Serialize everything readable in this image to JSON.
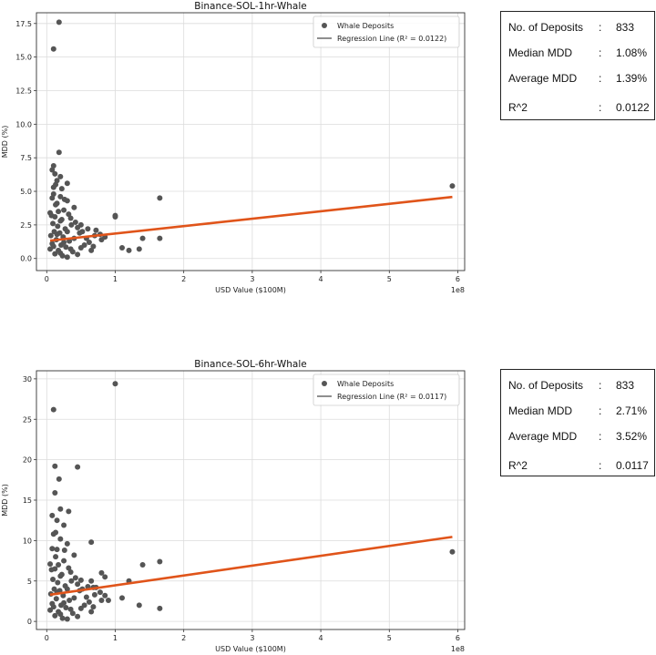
{
  "chart_data": [
    {
      "type": "scatter",
      "title": "Binance-SOL-1hr-Whale",
      "xlabel": "USD Value ($100M)",
      "ylabel": "MDD (%)",
      "x_offset_label": "1e8",
      "xlim": [
        -0.15,
        6.1
      ],
      "ylim": [
        -0.9,
        18.3
      ],
      "xticks": [
        0,
        1,
        2,
        3,
        4,
        5,
        6
      ],
      "yticks": [
        0.0,
        2.5,
        5.0,
        7.5,
        10.0,
        12.5,
        15.0,
        17.5
      ],
      "ytick_labels": [
        "0.0",
        "2.5",
        "5.0",
        "7.5",
        "10.0",
        "12.5",
        "15.0",
        "17.5"
      ],
      "grid": true,
      "legend_position": "top-right",
      "series": [
        {
          "name": "Whale Deposits",
          "kind": "scatter",
          "color": "#555555",
          "points": [
            [
              0.18,
              17.6
            ],
            [
              0.1,
              15.6
            ],
            [
              0.18,
              7.9
            ],
            [
              0.1,
              6.9
            ],
            [
              0.08,
              6.6
            ],
            [
              0.12,
              6.3
            ],
            [
              0.2,
              6.1
            ],
            [
              0.15,
              5.8
            ],
            [
              0.3,
              5.6
            ],
            [
              0.1,
              5.3
            ],
            [
              0.22,
              5.2
            ],
            [
              0.1,
              4.8
            ],
            [
              0.2,
              4.6
            ],
            [
              0.3,
              4.3
            ],
            [
              0.15,
              4.1
            ],
            [
              0.4,
              3.8
            ],
            [
              0.25,
              3.6
            ],
            [
              0.05,
              3.4
            ],
            [
              0.12,
              3.1
            ],
            [
              0.35,
              3.0
            ],
            [
              0.2,
              2.8
            ],
            [
              0.5,
              2.5
            ],
            [
              0.45,
              2.3
            ],
            [
              0.6,
              2.2
            ],
            [
              0.3,
              2.0
            ],
            [
              0.15,
              1.8
            ],
            [
              0.7,
              1.7
            ],
            [
              0.4,
              1.5
            ],
            [
              0.8,
              1.4
            ],
            [
              0.25,
              1.2
            ],
            [
              0.55,
              1.0
            ],
            [
              0.1,
              0.9
            ],
            [
              0.35,
              0.7
            ],
            [
              0.65,
              0.6
            ],
            [
              0.2,
              0.4
            ],
            [
              0.45,
              0.3
            ],
            [
              0.3,
              0.1
            ],
            [
              0.08,
              4.5
            ],
            [
              0.13,
              4.0
            ],
            [
              0.17,
              3.5
            ],
            [
              0.07,
              3.2
            ],
            [
              0.22,
              2.9
            ],
            [
              0.09,
              2.6
            ],
            [
              0.16,
              2.4
            ],
            [
              0.27,
              2.2
            ],
            [
              0.11,
              2.0
            ],
            [
              0.19,
              1.9
            ],
            [
              0.06,
              1.7
            ],
            [
              0.24,
              1.6
            ],
            [
              0.14,
              1.4
            ],
            [
              0.33,
              1.3
            ],
            [
              0.08,
              1.1
            ],
            [
              0.21,
              1.0
            ],
            [
              0.28,
              0.85
            ],
            [
              0.05,
              0.7
            ],
            [
              0.17,
              0.6
            ],
            [
              0.38,
              0.5
            ],
            [
              0.12,
              0.35
            ],
            [
              0.23,
              0.2
            ],
            [
              0.42,
              2.7
            ],
            [
              0.52,
              2.0
            ],
            [
              0.58,
              1.5
            ],
            [
              0.62,
              1.2
            ],
            [
              0.68,
              0.9
            ],
            [
              0.72,
              2.1
            ],
            [
              0.78,
              1.8
            ],
            [
              0.85,
              1.6
            ],
            [
              0.5,
              0.8
            ],
            [
              0.48,
              1.9
            ],
            [
              0.36,
              2.5
            ],
            [
              0.32,
              3.3
            ],
            [
              0.26,
              4.4
            ],
            [
              0.13,
              5.5
            ],
            [
              1.0,
              3.1
            ],
            [
              1.0,
              3.2
            ],
            [
              1.1,
              0.8
            ],
            [
              1.2,
              0.6
            ],
            [
              1.35,
              0.7
            ],
            [
              1.4,
              1.5
            ],
            [
              1.65,
              1.5
            ],
            [
              1.65,
              4.5
            ],
            [
              5.92,
              5.4
            ]
          ]
        },
        {
          "name": "Regression Line (R² = 0.0122)",
          "kind": "line",
          "color": "#e0541a",
          "points": [
            [
              0.05,
              1.33
            ],
            [
              5.92,
              4.58
            ]
          ]
        }
      ]
    },
    {
      "type": "scatter",
      "title": "Binance-SOL-6hr-Whale",
      "xlabel": "USD Value ($100M)",
      "ylabel": "MDD (%)",
      "x_offset_label": "1e8",
      "xlim": [
        -0.15,
        6.1
      ],
      "ylim": [
        -1.0,
        31.0
      ],
      "xticks": [
        0,
        1,
        2,
        3,
        4,
        5,
        6
      ],
      "yticks": [
        0,
        5,
        10,
        15,
        20,
        25,
        30
      ],
      "ytick_labels": [
        "0",
        "5",
        "10",
        "15",
        "20",
        "25",
        "30"
      ],
      "grid": true,
      "legend_position": "top-right",
      "series": [
        {
          "name": "Whale Deposits",
          "kind": "scatter",
          "color": "#555555",
          "points": [
            [
              0.1,
              26.2
            ],
            [
              1.0,
              29.4
            ],
            [
              0.12,
              19.2
            ],
            [
              0.45,
              19.1
            ],
            [
              0.18,
              17.6
            ],
            [
              0.12,
              15.9
            ],
            [
              0.2,
              13.9
            ],
            [
              0.32,
              13.6
            ],
            [
              0.08,
              13.1
            ],
            [
              0.15,
              12.5
            ],
            [
              0.25,
              11.9
            ],
            [
              0.1,
              10.8
            ],
            [
              0.2,
              10.2
            ],
            [
              0.3,
              9.6
            ],
            [
              0.15,
              8.9
            ],
            [
              0.4,
              8.2
            ],
            [
              0.25,
              7.5
            ],
            [
              0.05,
              7.1
            ],
            [
              0.12,
              6.5
            ],
            [
              0.35,
              6.1
            ],
            [
              0.2,
              5.6
            ],
            [
              0.5,
              5.1
            ],
            [
              0.45,
              4.6
            ],
            [
              0.6,
              4.3
            ],
            [
              0.3,
              4.0
            ],
            [
              0.15,
              3.6
            ],
            [
              0.7,
              3.3
            ],
            [
              0.4,
              2.9
            ],
            [
              0.8,
              2.6
            ],
            [
              0.25,
              2.3
            ],
            [
              0.55,
              2.0
            ],
            [
              0.1,
              1.8
            ],
            [
              0.35,
              1.5
            ],
            [
              0.65,
              1.2
            ],
            [
              0.2,
              0.9
            ],
            [
              0.45,
              0.6
            ],
            [
              0.3,
              0.3
            ],
            [
              0.08,
              9.0
            ],
            [
              0.13,
              8.0
            ],
            [
              0.17,
              7.0
            ],
            [
              0.07,
              6.4
            ],
            [
              0.22,
              5.8
            ],
            [
              0.09,
              5.2
            ],
            [
              0.16,
              4.8
            ],
            [
              0.27,
              4.4
            ],
            [
              0.11,
              4.0
            ],
            [
              0.19,
              3.8
            ],
            [
              0.06,
              3.4
            ],
            [
              0.24,
              3.2
            ],
            [
              0.14,
              2.8
            ],
            [
              0.33,
              2.6
            ],
            [
              0.08,
              2.2
            ],
            [
              0.21,
              2.0
            ],
            [
              0.28,
              1.7
            ],
            [
              0.05,
              1.4
            ],
            [
              0.17,
              1.2
            ],
            [
              0.38,
              1.0
            ],
            [
              0.12,
              0.7
            ],
            [
              0.23,
              0.4
            ],
            [
              0.42,
              5.4
            ],
            [
              0.52,
              4.0
            ],
            [
              0.58,
              3.0
            ],
            [
              0.62,
              2.4
            ],
            [
              0.68,
              1.8
            ],
            [
              0.72,
              4.2
            ],
            [
              0.78,
              3.6
            ],
            [
              0.85,
              3.2
            ],
            [
              0.5,
              1.6
            ],
            [
              0.48,
              3.8
            ],
            [
              0.36,
              5.0
            ],
            [
              0.32,
              6.6
            ],
            [
              0.26,
              8.8
            ],
            [
              0.13,
              11.0
            ],
            [
              0.65,
              9.8
            ],
            [
              0.65,
              5.0
            ],
            [
              0.68,
              4.2
            ],
            [
              0.8,
              6.0
            ],
            [
              0.85,
              5.5
            ],
            [
              0.9,
              2.6
            ],
            [
              1.1,
              2.9
            ],
            [
              1.2,
              5.0
            ],
            [
              1.35,
              2.0
            ],
            [
              1.4,
              7.0
            ],
            [
              1.65,
              7.4
            ],
            [
              1.65,
              1.6
            ],
            [
              5.92,
              8.6
            ]
          ]
        },
        {
          "name": "Regression Line (R² = 0.0117)",
          "kind": "line",
          "color": "#e0541a",
          "points": [
            [
              0.05,
              3.3
            ],
            [
              5.92,
              10.45
            ]
          ]
        }
      ]
    }
  ],
  "stats": [
    [
      {
        "label": "No. of Deposits",
        "colon": ":",
        "value": "833"
      },
      {
        "label": "Median MDD",
        "colon": ":",
        "value": "1.08%"
      },
      {
        "label": "Average MDD",
        "colon": ":",
        "value": "1.39%"
      },
      {
        "label": "R^2",
        "colon": ":",
        "value": "0.0122"
      }
    ],
    [
      {
        "label": "No. of Deposits",
        "colon": ":",
        "value": "833"
      },
      {
        "label": "Median MDD",
        "colon": ":",
        "value": "2.71%"
      },
      {
        "label": "Average MDD",
        "colon": ":",
        "value": "3.52%"
      },
      {
        "label": "R^2",
        "colon": ":",
        "value": "0.0117"
      }
    ]
  ]
}
